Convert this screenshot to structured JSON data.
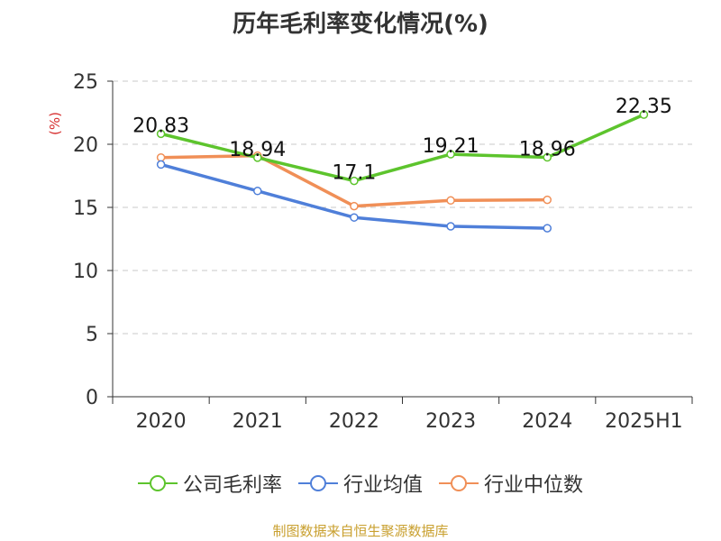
{
  "chart_data": {
    "type": "line",
    "title": "历年毛利率变化情况(%)",
    "ylabel": "(%)",
    "categories": [
      "2020",
      "2021",
      "2022",
      "2023",
      "2024",
      "2025H1"
    ],
    "ylim": [
      0,
      25
    ],
    "yticks": [
      "0",
      "5",
      "10",
      "15",
      "20",
      "25"
    ],
    "grid": true,
    "legend_position": "bottom",
    "series": [
      {
        "name": "公司毛利率",
        "color": "#5dc42d",
        "values": [
          20.83,
          18.94,
          17.1,
          19.21,
          18.96,
          22.35
        ],
        "labels": [
          "20.83",
          "18.94",
          "17.1",
          "19.21",
          "18.96",
          "22.35"
        ]
      },
      {
        "name": "行业均值",
        "color": "#4f7fd9",
        "values": [
          18.4,
          16.3,
          14.2,
          13.5,
          13.35,
          null
        ]
      },
      {
        "name": "行业中位数",
        "color": "#f08f57",
        "values": [
          18.95,
          19.1,
          15.1,
          15.55,
          15.6,
          null
        ]
      }
    ]
  },
  "source": "制图数据来自恒生聚源数据库"
}
